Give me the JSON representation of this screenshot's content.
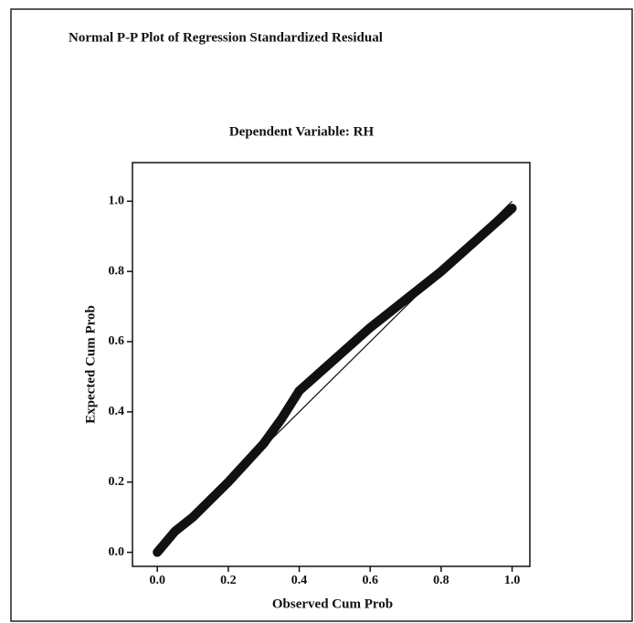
{
  "chart_data": {
    "type": "line",
    "title": "Normal P-P Plot of Regression Standardized Residual",
    "subtitle": "Dependent Variable: RH",
    "x_label": "Observed Cum Prob",
    "y_label": "Expected Cum Prob",
    "xlim": [
      -0.07,
      1.05
    ],
    "ylim": [
      -0.04,
      1.11
    ],
    "xticks": [
      {
        "value": 0,
        "label": "0.0"
      },
      {
        "value": 0.2,
        "label": "0.2"
      },
      {
        "value": 0.4,
        "label": "0.4"
      },
      {
        "value": 0.6,
        "label": "0.6"
      },
      {
        "value": 0.8,
        "label": "0.8"
      },
      {
        "value": 1,
        "label": "1.0"
      }
    ],
    "yticks": [
      {
        "value": 0,
        "label": "0.0"
      },
      {
        "value": 0.2,
        "label": "0.2"
      },
      {
        "value": 0.4,
        "label": "0.4"
      },
      {
        "value": 0.6,
        "label": "0.6"
      },
      {
        "value": 0.8,
        "label": "0.8"
      },
      {
        "value": 1,
        "label": "1.0"
      }
    ],
    "series": [
      {
        "name": "Residual",
        "color": "#111111",
        "x": [
          0,
          0.05,
          0.1,
          0.2,
          0.3,
          0.35,
          0.4,
          0.5,
          0.6,
          0.7,
          0.8,
          0.9,
          1.0
        ],
        "values": [
          0,
          0.06,
          0.1,
          0.2,
          0.31,
          0.38,
          0.46,
          0.55,
          0.64,
          0.72,
          0.8,
          0.89,
          0.98
        ]
      }
    ]
  }
}
